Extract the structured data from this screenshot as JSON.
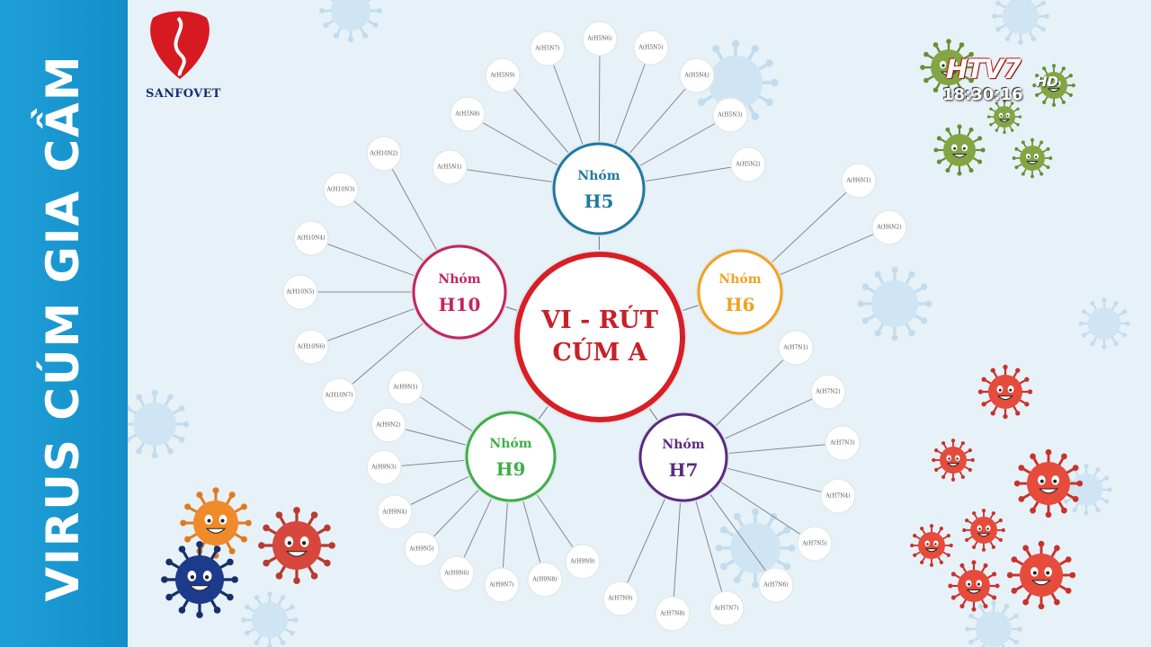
{
  "sidebar": {
    "title": "VIRUS CÚM GIA CẦM"
  },
  "logo": {
    "name": "SANFOVET"
  },
  "broadcaster": {
    "channel": "HTV7",
    "hd": "HD",
    "time": "18:30:16"
  },
  "diagram": {
    "center": {
      "line1": "VI - RÚT",
      "line2": "CÚM A",
      "color": "#d81e26"
    },
    "groups": [
      {
        "id": "h5",
        "label": "Nhóm",
        "code": "H5",
        "color": "#1e7aa0",
        "subtypes": [
          "A(H5N7)",
          "A(H5N6)",
          "A(H5N5)",
          "A(H5N4)",
          "A(H5N3)",
          "A(H5N2)",
          "A(H5N1)",
          "A(H5N8)",
          "A(H5N9)"
        ]
      },
      {
        "id": "h6",
        "label": "Nhóm",
        "code": "H6",
        "color": "#f0a21f",
        "subtypes": [
          "A(H6N1)",
          "A(H6N2)"
        ]
      },
      {
        "id": "h7",
        "label": "Nhóm",
        "code": "H7",
        "color": "#5a2b82",
        "subtypes": [
          "A(H7N1)",
          "A(H7N2)",
          "A(H7N3)",
          "A(H7N4)",
          "A(H7N5)",
          "A(H7N6)",
          "A(H7N7)",
          "A(H7N8)",
          "A(H7N9)",
          "A(H7N9)"
        ]
      },
      {
        "id": "h9",
        "label": "Nhóm",
        "code": "H9",
        "color": "#3fae49",
        "subtypes": [
          "A(H9N1)",
          "A(H9N2)",
          "A(H9N3)",
          "A(H9N4)",
          "A(H9N5)",
          "A(H9N6)",
          "A(H9N7)",
          "A(H9N8)",
          "A(H9N9)"
        ]
      },
      {
        "id": "h10",
        "label": "Nhóm",
        "code": "H10",
        "color": "#c4245f",
        "subtypes": [
          "A(H10N2)",
          "A(H10N3)",
          "A(H10N4)",
          "A(H10N5)",
          "A(H10N6)",
          "A(H10N7)",
          "A(H10N8)"
        ]
      }
    ]
  }
}
